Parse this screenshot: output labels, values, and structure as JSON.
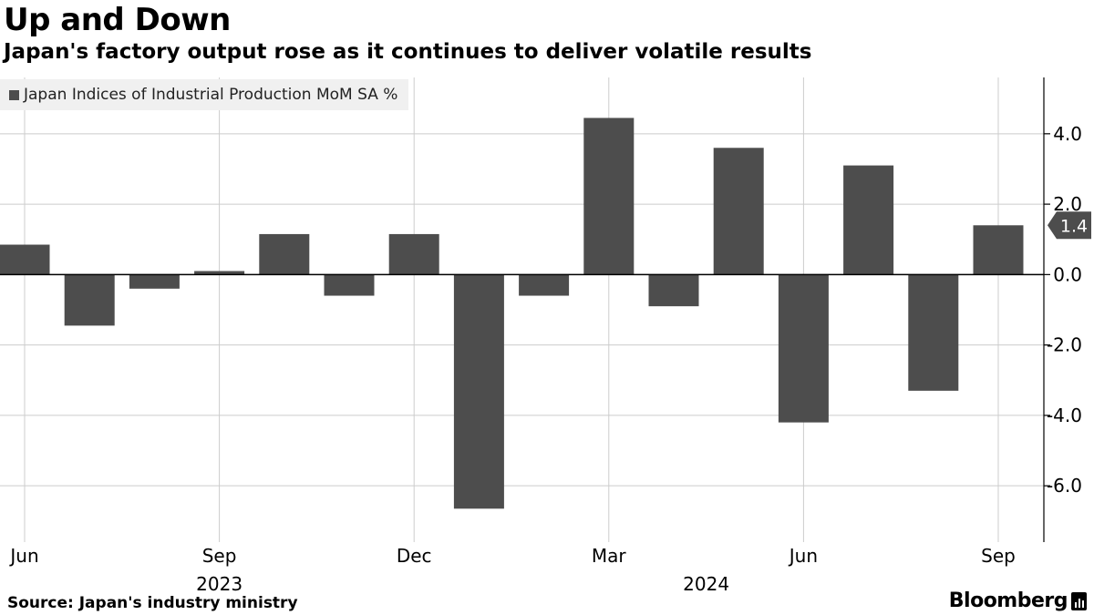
{
  "header": {
    "title": "Up and Down",
    "subtitle": "Japan's factory output rose as it continues to deliver volatile results"
  },
  "legend": {
    "label": "Japan Indices of Industrial Production MoM SA %"
  },
  "footer": {
    "source": "Source: Japan's industry ministry",
    "brand": "Bloomberg"
  },
  "colors": {
    "bar": "#4d4d4d",
    "grid": "#cccccc",
    "legend_bg": "#f0f0f0",
    "callout": "#4d4d4d"
  },
  "chart_data": {
    "type": "bar",
    "title": "Up and Down",
    "subtitle": "Japan's factory output rose as it continues to deliver volatile results",
    "series": [
      {
        "name": "Japan Indices of Industrial Production MoM SA %",
        "categories": [
          "Jun 2023",
          "Jul 2023",
          "Aug 2023",
          "Sep 2023",
          "Oct 2023",
          "Nov 2023",
          "Dec 2023",
          "Jan 2024",
          "Feb 2024",
          "Mar 2024",
          "Apr 2024",
          "May 2024",
          "Jun 2024",
          "Jul 2024",
          "Aug 2024",
          "Sep 2024"
        ],
        "values": [
          0.85,
          -1.45,
          -0.4,
          0.1,
          1.15,
          -0.6,
          1.15,
          -6.65,
          -0.6,
          4.45,
          -0.9,
          3.6,
          -4.2,
          3.1,
          -3.3,
          1.4
        ]
      }
    ],
    "x_ticks": [
      {
        "label": "Jun",
        "index": 0
      },
      {
        "label": "Sep",
        "index": 3
      },
      {
        "label": "Dec",
        "index": 6
      },
      {
        "label": "Mar",
        "index": 9
      },
      {
        "label": "Jun",
        "index": 12
      },
      {
        "label": "Sep",
        "index": 15
      }
    ],
    "year_labels": [
      {
        "label": "2023",
        "index": 3
      },
      {
        "label": "2024",
        "index": 10.5
      }
    ],
    "y_ticks": [
      4.0,
      2.0,
      0.0,
      -2.0,
      -4.0,
      -6.0
    ],
    "y_tick_labels": [
      "4.0",
      "2.0",
      "0.0",
      "-2.0",
      "-4.0",
      "-6.0"
    ],
    "ylim": [
      -7.6,
      5.6
    ],
    "y_axis_position": "right",
    "last_value_label": "1.4",
    "xlabel": "",
    "ylabel": "",
    "grid": true,
    "legend_position": "top-left"
  }
}
